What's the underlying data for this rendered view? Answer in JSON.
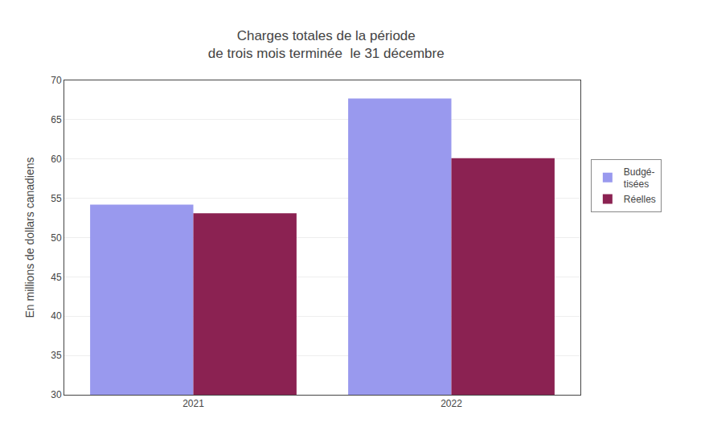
{
  "chart_data": {
    "type": "bar",
    "title": "Charges totales de la période\nde trois mois terminée  le 31 décembre",
    "categories": [
      "2021",
      "2022"
    ],
    "series": [
      {
        "name": "Budgé-\ntisées",
        "color": "#9999EE",
        "values": [
          54.2,
          67.7
        ]
      },
      {
        "name": "Réelles",
        "color": "#8B2252",
        "values": [
          53.1,
          60.1
        ]
      }
    ],
    "ylabel": "En millions de dollars canadiens",
    "ylim": [
      30,
      70
    ],
    "yticks": [
      30,
      35,
      40,
      45,
      50,
      55,
      60,
      65,
      70
    ],
    "grid": true,
    "legend": "right"
  }
}
